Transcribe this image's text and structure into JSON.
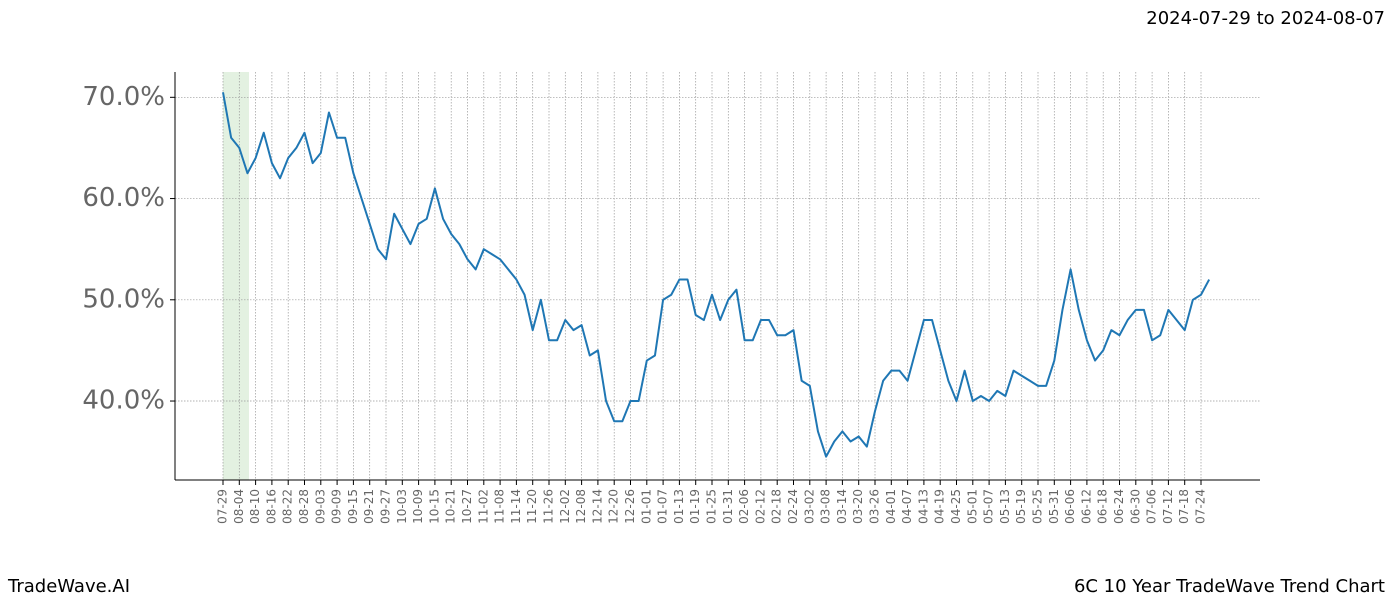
{
  "header": {
    "range": "2024-07-29 to 2024-08-07"
  },
  "footer": {
    "brand": "TradeWave.AI",
    "title": "6C 10 Year TradeWave Trend Chart"
  },
  "chart_data": {
    "type": "line",
    "color": "#1f77b4",
    "grid": true,
    "categories": [
      "07-29",
      null,
      "08-04",
      null,
      "08-10",
      null,
      "08-16",
      null,
      "08-22",
      null,
      "08-28",
      null,
      "09-03",
      null,
      "09-09",
      null,
      "09-15",
      null,
      "09-21",
      null,
      "09-27",
      null,
      "10-03",
      null,
      "10-09",
      null,
      "10-15",
      null,
      "10-21",
      null,
      "10-27",
      null,
      "11-02",
      null,
      "11-08",
      null,
      "11-14",
      null,
      "11-20",
      null,
      "11-26",
      null,
      "12-02",
      null,
      "12-08",
      null,
      "12-14",
      null,
      "12-20",
      null,
      "12-26",
      null,
      "01-01",
      null,
      "01-07",
      null,
      "01-13",
      null,
      "01-19",
      null,
      "01-25",
      null,
      "01-31",
      null,
      "02-06",
      null,
      "02-12",
      null,
      "02-18",
      null,
      "02-24",
      null,
      "03-02",
      null,
      "03-08",
      null,
      "03-14",
      null,
      "03-20",
      null,
      "03-26",
      null,
      "04-01",
      null,
      "04-07",
      null,
      "04-13",
      null,
      "04-19",
      null,
      "04-25",
      null,
      "05-01",
      null,
      "05-07",
      null,
      "05-13",
      null,
      "05-19",
      null,
      "05-25",
      null,
      "05-31",
      null,
      "06-06",
      null,
      "06-12",
      null,
      "06-18",
      null,
      "06-24",
      null,
      "06-30",
      null,
      "07-06",
      null,
      "07-12",
      null,
      "07-18",
      null,
      "07-24",
      null
    ],
    "values": [
      70.5,
      66,
      65,
      62.5,
      64,
      66.5,
      63.5,
      62,
      64,
      65,
      66.5,
      63.5,
      64.5,
      68.5,
      66,
      66,
      62.5,
      60,
      57.5,
      55,
      54,
      58.5,
      57,
      55.5,
      57.5,
      58,
      61,
      58,
      56.5,
      55.5,
      54,
      53,
      55,
      54.5,
      54,
      53,
      52,
      50.5,
      47,
      50,
      46,
      46,
      48,
      47,
      47.5,
      44.5,
      45,
      40,
      38,
      38,
      40,
      40,
      44,
      44.5,
      50,
      50.5,
      52,
      52,
      48.5,
      48,
      50.5,
      48,
      50,
      51,
      46,
      46,
      48,
      48,
      46.5,
      46.5,
      47,
      42,
      41.5,
      37,
      34.5,
      36,
      37,
      36,
      36.5,
      35.5,
      39,
      42,
      43,
      43,
      42,
      45,
      48,
      48,
      45,
      42,
      40,
      43,
      40,
      40.5,
      40,
      41,
      40.5,
      43,
      42.5,
      42,
      41.5,
      41.5,
      44,
      49,
      53,
      49,
      46,
      44,
      45,
      47,
      46.5,
      48,
      49,
      49,
      46,
      46.5,
      49,
      48,
      47,
      50,
      50.5,
      52
    ],
    "ylim": [
      32.2,
      72.5
    ],
    "yticks": [
      {
        "value": 40,
        "label": "40.0%"
      },
      {
        "value": 50,
        "label": "50.0%"
      },
      {
        "value": 60,
        "label": "60.0%"
      },
      {
        "value": 70,
        "label": "70.0%"
      }
    ]
  }
}
